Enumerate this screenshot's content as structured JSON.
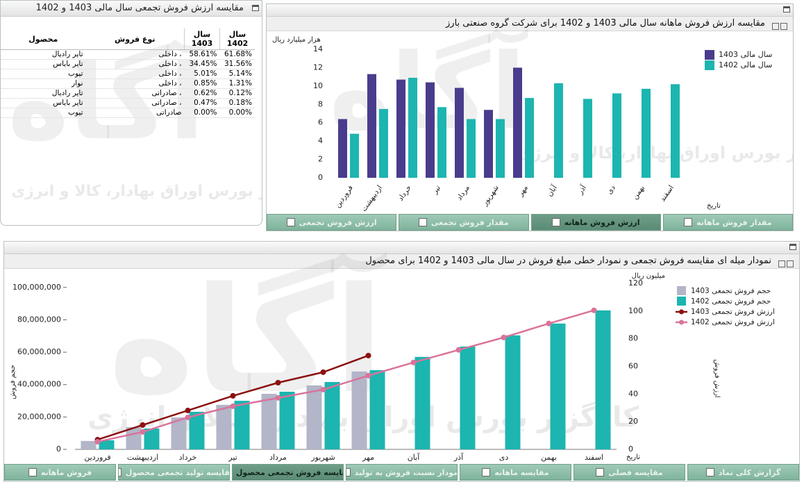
{
  "watermark": {
    "brand": "آگاه",
    "slogan": "کارگزار بورس اوراق بهادار، کالا و انرژی"
  },
  "table_panel": {
    "title": "مقایسه ارزش فروش تجمعی سال مالی 1403 و 1402",
    "columns": [
      "محصول",
      "نوع فروش",
      "سال 1403",
      "سال 1402"
    ],
    "rows": [
      [
        "تایر رادیال",
        "داخلی ،",
        "58.61%",
        "61.68%"
      ],
      [
        "تایر بایاس",
        "داخلی ،",
        "34.45%",
        "31.56%"
      ],
      [
        "تیوب",
        "داخلی ،",
        "5.01%",
        "5.14%"
      ],
      [
        "نوار",
        "داخلی ،",
        "0.85%",
        "1.31%"
      ],
      [
        "تایر رادیال",
        "صادراتی ،",
        "0.62%",
        "0.12%"
      ],
      [
        "تایر بایاس",
        "صادراتی ،",
        "0.47%",
        "0.18%"
      ],
      [
        "تیوب",
        "صادراتی",
        "0.00%",
        "0.00%"
      ]
    ]
  },
  "chart_data": [
    {
      "type": "bar",
      "title": "مقایسه ارزش فروش ماهانه سال مالی 1403 و 1402 برای شرکت گروه صنعتی بارز",
      "y_label": "هزار میلیارد ریال",
      "x_label": "تاریخ",
      "categories": [
        "فروردین",
        "اردیبهشت",
        "خرداد",
        "تیر",
        "مرداد",
        "شهریور",
        "مهر",
        "آبان",
        "آذر",
        "دی",
        "بهمن",
        "اسفند"
      ],
      "series": [
        {
          "name": "سال مالی 1403",
          "color": "#4a3c8c",
          "values": [
            6.4,
            11.3,
            10.7,
            10.4,
            9.8,
            7.4,
            12,
            null,
            null,
            null,
            null,
            null
          ]
        },
        {
          "name": "سال مالی 1402",
          "color": "#1db5b0",
          "values": [
            4.8,
            7.5,
            10.9,
            7.7,
            6.4,
            6.4,
            8.7,
            10.3,
            8.6,
            9.2,
            9.7,
            10.2
          ]
        }
      ],
      "ylim": [
        0,
        14
      ],
      "yticks": [
        0,
        2,
        4,
        6,
        8,
        10,
        12,
        14
      ],
      "grid": false,
      "legend": "right",
      "tabs": [
        "مقدار فروش ماهانه",
        "ارزش فروش ماهانه",
        "مقدار فروش تجمعی",
        "ارزش فروش تجمعی"
      ],
      "active_tab": 1
    },
    {
      "type": "combo",
      "title": "نمودار میله ای مقایسه فروش تجمعی و نمودار خطی مبلغ فروش در سال مالی 1403 و 1402 برای محصول",
      "y_label": "حجم فروش",
      "y2_label": "ارزش فروش",
      "y2_unit": "میلیون ریال",
      "x_label": "تاریخ",
      "categories": [
        "فروردین",
        "اردیبهشت",
        "خرداد",
        "تیر",
        "مرداد",
        "شهریور",
        "مهر",
        "آبان",
        "آذر",
        "دی",
        "بهمن",
        "اسفند"
      ],
      "series": [
        {
          "name": "حجم فروش تجمعی 1403",
          "kind": "bar",
          "color": "#b3b5c9",
          "values": [
            5200000,
            13700000,
            19700000,
            27500000,
            34300000,
            39500000,
            48100000,
            null,
            null,
            null,
            null,
            null
          ]
        },
        {
          "name": "حجم فروش تجمعی 1402",
          "kind": "bar",
          "color": "#1db5b0",
          "values": [
            5600000,
            12900000,
            23200000,
            30000000,
            35600000,
            41600000,
            48900000,
            57100000,
            63500000,
            70400000,
            77700000,
            85800000
          ]
        },
        {
          "name": "ارزش فروش تجمعی 1403",
          "kind": "line",
          "axis": "y2",
          "color": "#8b1010",
          "values": [
            7,
            17.6,
            28.1,
            38.7,
            48.2,
            55.8,
            67.8,
            null,
            null,
            null,
            null,
            null
          ]
        },
        {
          "name": "ارزش فروش تجمعی 1402",
          "kind": "line",
          "axis": "y2",
          "color": "#d9739a",
          "values": [
            5.5,
            12.6,
            23.1,
            31.2,
            37.2,
            43.2,
            53.3,
            62.8,
            71.9,
            80.9,
            91,
            100.5
          ]
        }
      ],
      "ylim": [
        0,
        102500000
      ],
      "yticks": [
        0,
        {
          "value": 20000000,
          "label": "20,000,000"
        },
        {
          "value": 40000000,
          "label": "40,000,000"
        },
        {
          "value": 60000000,
          "label": "60,000,000"
        },
        {
          "value": 80000000,
          "label": "80,000,000"
        },
        {
          "value": 100000000,
          "label": "100,000,000"
        }
      ],
      "y2lim": [
        0,
        120
      ],
      "y2ticks": [
        0,
        20,
        40,
        60,
        80,
        100,
        120
      ],
      "grid": false,
      "legend": "right",
      "tabs": [
        "گزارش کلی نماد",
        "مقایسه فصلی",
        "مقایسه ماهانه",
        "نمودار نسبت فروش به تولید",
        "مقایسه فروش تجمعی محصول",
        "مقایسه تولید تجمعی محصول",
        "فروش ماهانه"
      ],
      "active_tab": 4
    }
  ]
}
